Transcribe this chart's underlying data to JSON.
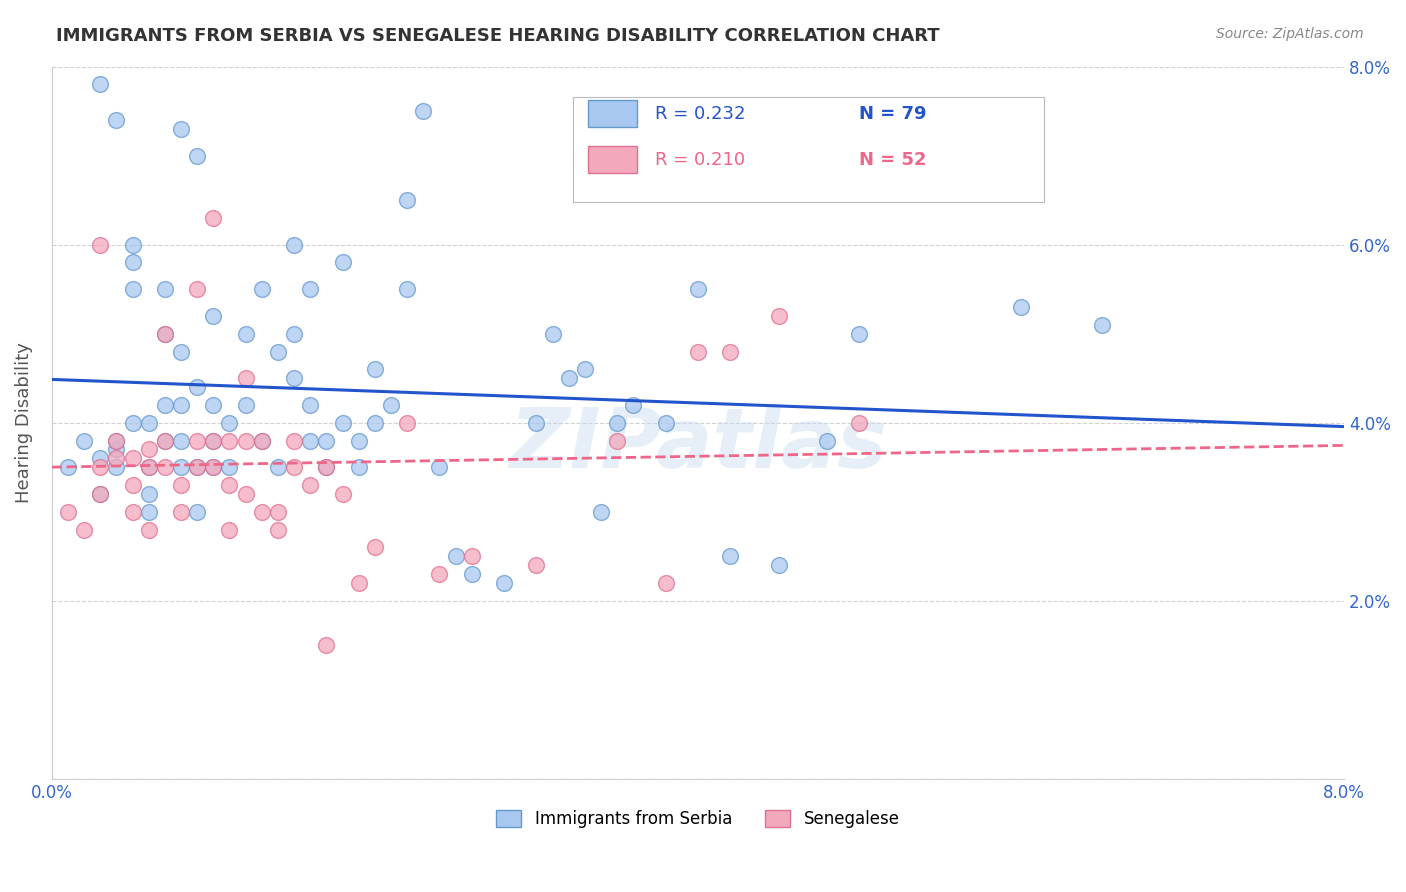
{
  "title": "IMMIGRANTS FROM SERBIA VS SENEGALESE HEARING DISABILITY CORRELATION CHART",
  "source": "Source: ZipAtlas.com",
  "ylabel": "Hearing Disability",
  "xlim": [
    0.0,
    0.08
  ],
  "ylim": [
    0.0,
    0.08
  ],
  "legend_r1": "0.232",
  "legend_n1": "79",
  "legend_r2": "0.210",
  "legend_n2": "52",
  "serbia_color": "#A8C8F0",
  "senegal_color": "#F4A8BC",
  "serbia_edge": "#6699CC",
  "senegal_edge": "#E07090",
  "serbia_trendline_color": "#2255CC",
  "senegal_trendline_color": "#EE6688",
  "background_color": "#ffffff",
  "grid_color": "#cccccc",
  "axis_label_color": "#3366CC",
  "title_color": "#333333",
  "watermark_text": "ZIPatlas",
  "serbia_label": "Immigrants from Serbia",
  "senegal_label": "Senegalese",
  "serbia_x": [
    0.001,
    0.002,
    0.003,
    0.003,
    0.004,
    0.004,
    0.004,
    0.005,
    0.005,
    0.005,
    0.005,
    0.006,
    0.006,
    0.006,
    0.006,
    0.007,
    0.007,
    0.007,
    0.007,
    0.008,
    0.008,
    0.008,
    0.008,
    0.009,
    0.009,
    0.009,
    0.01,
    0.01,
    0.01,
    0.01,
    0.011,
    0.011,
    0.012,
    0.012,
    0.013,
    0.013,
    0.014,
    0.014,
    0.015,
    0.015,
    0.015,
    0.016,
    0.016,
    0.016,
    0.017,
    0.017,
    0.018,
    0.018,
    0.019,
    0.019,
    0.02,
    0.02,
    0.021,
    0.022,
    0.022,
    0.023,
    0.024,
    0.025,
    0.026,
    0.028,
    0.03,
    0.031,
    0.032,
    0.033,
    0.034,
    0.035,
    0.036,
    0.038,
    0.04,
    0.042,
    0.045,
    0.048,
    0.05,
    0.003,
    0.004,
    0.008,
    0.009,
    0.065,
    0.06
  ],
  "serbia_y": [
    0.035,
    0.038,
    0.036,
    0.032,
    0.037,
    0.038,
    0.035,
    0.04,
    0.055,
    0.058,
    0.06,
    0.03,
    0.032,
    0.035,
    0.04,
    0.042,
    0.038,
    0.05,
    0.055,
    0.035,
    0.038,
    0.042,
    0.048,
    0.03,
    0.035,
    0.044,
    0.035,
    0.038,
    0.042,
    0.052,
    0.035,
    0.04,
    0.042,
    0.05,
    0.038,
    0.055,
    0.035,
    0.048,
    0.045,
    0.05,
    0.06,
    0.038,
    0.042,
    0.055,
    0.035,
    0.038,
    0.04,
    0.058,
    0.035,
    0.038,
    0.04,
    0.046,
    0.042,
    0.055,
    0.065,
    0.075,
    0.035,
    0.025,
    0.023,
    0.022,
    0.04,
    0.05,
    0.045,
    0.046,
    0.03,
    0.04,
    0.042,
    0.04,
    0.055,
    0.025,
    0.024,
    0.038,
    0.05,
    0.078,
    0.074,
    0.073,
    0.07,
    0.051,
    0.053
  ],
  "senegal_x": [
    0.001,
    0.002,
    0.003,
    0.003,
    0.004,
    0.004,
    0.005,
    0.005,
    0.005,
    0.006,
    0.006,
    0.006,
    0.007,
    0.007,
    0.008,
    0.008,
    0.009,
    0.009,
    0.01,
    0.01,
    0.011,
    0.011,
    0.012,
    0.012,
    0.013,
    0.014,
    0.015,
    0.016,
    0.017,
    0.018,
    0.019,
    0.02,
    0.022,
    0.024,
    0.026,
    0.03,
    0.035,
    0.038,
    0.04,
    0.042,
    0.045,
    0.003,
    0.007,
    0.009,
    0.01,
    0.011,
    0.012,
    0.013,
    0.014,
    0.015,
    0.017,
    0.05
  ],
  "senegal_y": [
    0.03,
    0.028,
    0.035,
    0.032,
    0.038,
    0.036,
    0.03,
    0.033,
    0.036,
    0.028,
    0.035,
    0.037,
    0.035,
    0.038,
    0.03,
    0.033,
    0.035,
    0.038,
    0.035,
    0.038,
    0.028,
    0.033,
    0.032,
    0.038,
    0.03,
    0.028,
    0.035,
    0.033,
    0.035,
    0.032,
    0.022,
    0.026,
    0.04,
    0.023,
    0.025,
    0.024,
    0.038,
    0.022,
    0.048,
    0.048,
    0.052,
    0.06,
    0.05,
    0.055,
    0.063,
    0.038,
    0.045,
    0.038,
    0.03,
    0.038,
    0.015,
    0.04
  ]
}
